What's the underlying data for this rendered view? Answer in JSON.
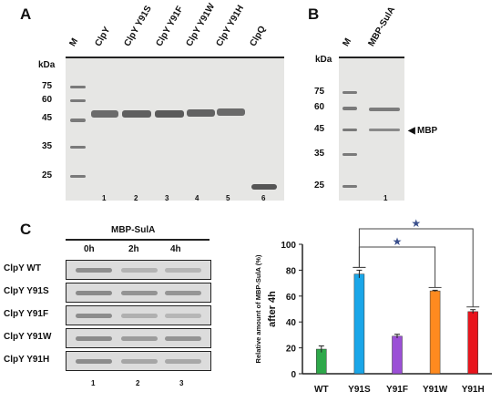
{
  "panelA": {
    "letter": "A",
    "unit": "kDa",
    "lanes": [
      "M",
      "ClpY",
      "ClpY Y91S",
      "ClpY Y91F",
      "ClpY Y91W",
      "ClpY Y91H",
      "ClpQ"
    ],
    "markers": [
      "75",
      "60",
      "45",
      "35",
      "25"
    ],
    "lane_numbers": [
      "1",
      "2",
      "3",
      "4",
      "5",
      "6"
    ]
  },
  "panelB": {
    "letter": "B",
    "unit": "kDa",
    "lanes": [
      "M",
      "MBP-SulA"
    ],
    "markers": [
      "75",
      "60",
      "45",
      "35",
      "25"
    ],
    "annotation": "MBP",
    "lane_numbers": [
      "1"
    ]
  },
  "panelC": {
    "letter": "C",
    "blot_title": "MBP-SulA",
    "timepoints": [
      "0h",
      "2h",
      "4h"
    ],
    "rows": [
      "ClpY WT",
      "ClpY Y91S",
      "ClpY Y91F",
      "ClpY Y91W",
      "ClpY Y91H"
    ],
    "lane_numbers": [
      "1",
      "2",
      "3"
    ]
  },
  "chart_data": {
    "type": "bar",
    "ylabel": "Relative amount of MBP-SulA (%)",
    "ylabel2": "after 4h",
    "categories": [
      "WT",
      "Y91S",
      "Y91F",
      "Y91W",
      "Y91H"
    ],
    "values": [
      19,
      77,
      29,
      64,
      48
    ],
    "errors": [
      2.5,
      3,
      1.5,
      0.5,
      1.5
    ],
    "colors": [
      "#2ea84a",
      "#1aa6e8",
      "#9b4fd6",
      "#ff8a1f",
      "#e8141c"
    ],
    "ylim": [
      0,
      100
    ],
    "yticks": [
      "0",
      "20",
      "40",
      "60",
      "80",
      "100"
    ],
    "significance": [
      {
        "from": "Y91S",
        "to": "Y91H",
        "mark": "★"
      },
      {
        "from": "Y91S",
        "to": "Y91W",
        "mark": "★"
      }
    ]
  }
}
